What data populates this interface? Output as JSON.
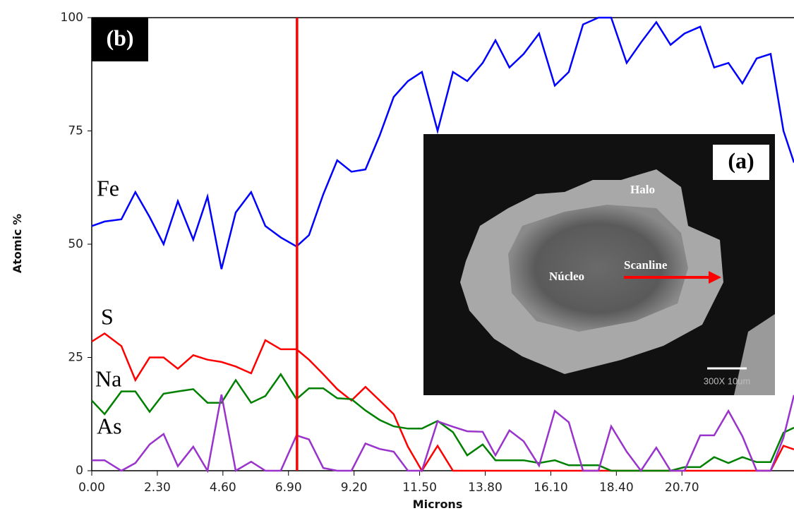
{
  "chart_data": {
    "type": "line",
    "x_label": "Microns",
    "y_label": "Atomic %",
    "panel_label": "(b)",
    "x": [
      0,
      0.45,
      1.04,
      1.53,
      2.03,
      2.52,
      3.02,
      3.56,
      4.06,
      4.55,
      5.05,
      5.59,
      6.09,
      6.63,
      7.18,
      7.62,
      8.12,
      8.61,
      9.11,
      9.6,
      10.1,
      10.59,
      11.09,
      11.58,
      12.13,
      12.67,
      13.17,
      13.71,
      14.16,
      14.65,
      15.15,
      15.69,
      16.24,
      16.73,
      17.23,
      17.77,
      18.22,
      18.76,
      19.26,
      19.8,
      20.3,
      20.79,
      21.34,
      21.83,
      22.33,
      22.82,
      23.32,
      23.81,
      24.26,
      24.63
    ],
    "series": [
      {
        "name": "Fe",
        "color": "#0000ff",
        "values": [
          54,
          55,
          55.5,
          61.5,
          56,
          50,
          59.5,
          51,
          60.5,
          44.5,
          57,
          61.5,
          54,
          51.5,
          49.5,
          52,
          61,
          68.5,
          66,
          66.5,
          74,
          82.5,
          86,
          88,
          75,
          88,
          86,
          90,
          95,
          89,
          92,
          96.5,
          85,
          88,
          98.5,
          100,
          100,
          90,
          94.5,
          99,
          94,
          96.5,
          98,
          89,
          90,
          85.5,
          91,
          92,
          75,
          68
        ]
      },
      {
        "name": "S",
        "color": "#ff0000",
        "values": [
          28.5,
          30.3,
          27.5,
          20,
          25,
          25,
          22.5,
          25.5,
          24.5,
          24,
          23,
          21.5,
          28.8,
          26.8,
          26.8,
          24.5,
          21.3,
          18,
          15.5,
          18.5,
          15.5,
          12.5,
          5.3,
          0,
          5.5,
          0,
          0,
          0,
          0,
          0,
          0,
          0,
          0,
          0,
          0,
          0,
          0,
          0,
          0,
          0,
          0,
          0,
          0,
          0,
          0,
          0,
          0,
          0,
          5.5,
          4.7
        ]
      },
      {
        "name": "Na",
        "color": "#008000",
        "values": [
          15.5,
          12.5,
          17.5,
          17.5,
          13,
          17,
          17.5,
          18,
          15,
          15,
          20,
          15,
          16.5,
          21.3,
          15.8,
          18.2,
          18.2,
          16,
          15.8,
          13.3,
          11.2,
          9.8,
          9.3,
          9.3,
          11,
          8.5,
          3.4,
          5.8,
          2.3,
          2.3,
          2.3,
          1.7,
          2.3,
          1.2,
          1.2,
          1.2,
          0,
          0,
          0,
          0,
          0,
          0.8,
          0.8,
          3,
          1.7,
          3,
          1.9,
          1.9,
          8.4,
          9.5
        ]
      },
      {
        "name": "As",
        "color": "#9933cc",
        "values": [
          2.3,
          2.3,
          0,
          1.7,
          5.8,
          8.1,
          1,
          5.3,
          0,
          16.8,
          0,
          2,
          0,
          0,
          7.8,
          6.9,
          0.6,
          0,
          0,
          6,
          4.8,
          4.2,
          0,
          0,
          10.9,
          9.7,
          8.7,
          8.6,
          3.4,
          8.9,
          6.5,
          1.1,
          13.2,
          10.7,
          0,
          0,
          9.8,
          4.2,
          0,
          5.1,
          0,
          0,
          7.8,
          7.8,
          13.2,
          7.6,
          0,
          0,
          7.3,
          16.7
        ]
      }
    ],
    "xlim": [
      0,
      24.63
    ],
    "ylim": [
      0,
      100
    ],
    "xticks": [
      {
        "value": 0,
        "label": "0.00"
      },
      {
        "value": 2.3,
        "label": "2.30"
      },
      {
        "value": 4.6,
        "label": "4.60"
      },
      {
        "value": 6.9,
        "label": "6.90"
      },
      {
        "value": 9.2,
        "label": "9.20"
      },
      {
        "value": 11.5,
        "label": "11.50"
      },
      {
        "value": 13.8,
        "label": "13.80"
      },
      {
        "value": 16.1,
        "label": "16.10"
      },
      {
        "value": 18.4,
        "label": "18.40"
      },
      {
        "value": 20.7,
        "label": "20.70"
      }
    ],
    "yticks": [
      0,
      25,
      50,
      75,
      100
    ],
    "vertical_line_x": 7.2,
    "vertical_line_color": "#ff0000",
    "inset": {
      "label": "(a)",
      "annotations": [
        "Halo",
        "Núcleo",
        "Scanline"
      ],
      "scale_text": "300X 10um"
    }
  }
}
